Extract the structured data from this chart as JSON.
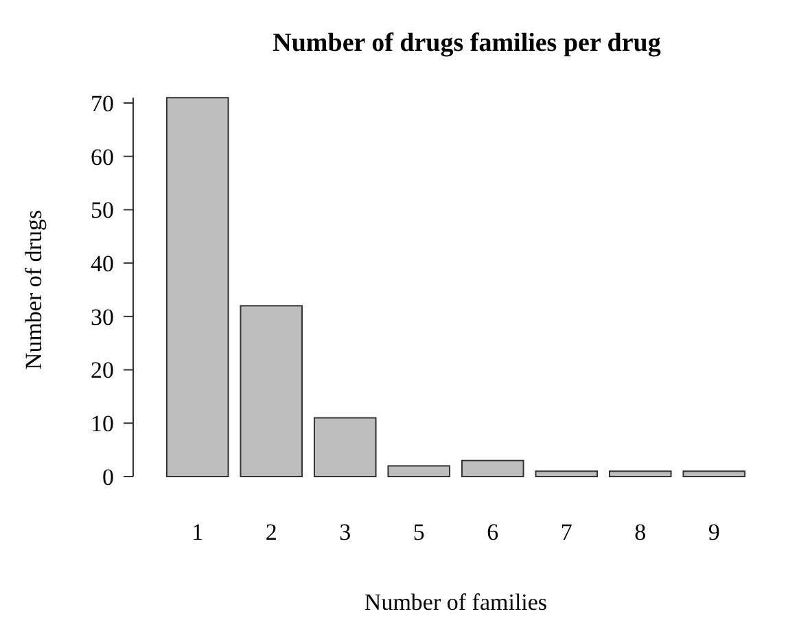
{
  "chart_data": {
    "type": "bar",
    "title": "Number of drugs families per drug",
    "xlabel": "Number of families",
    "ylabel": "Number of drugs",
    "categories": [
      "1",
      "2",
      "3",
      "5",
      "6",
      "7",
      "8",
      "9"
    ],
    "values": [
      71,
      32,
      11,
      2,
      3,
      1,
      1,
      1
    ],
    "color": "#bebebe",
    "ylim": [
      0,
      71
    ],
    "yticks": [
      0,
      10,
      20,
      30,
      40,
      50,
      60,
      70
    ],
    "grid": false
  }
}
